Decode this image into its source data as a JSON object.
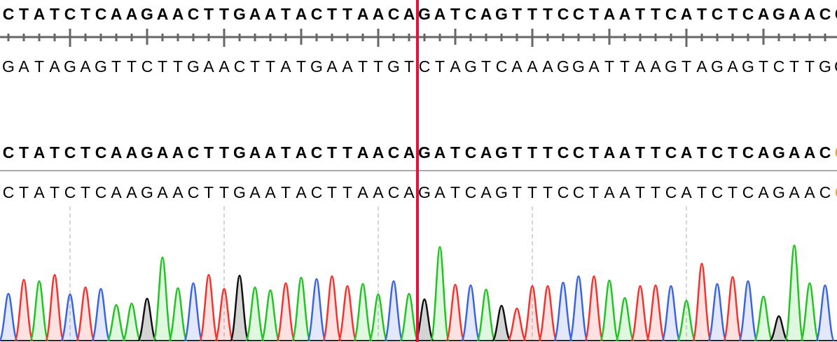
{
  "colors": {
    "A": "#22c322",
    "C": "#3a64e0",
    "G": "#111111",
    "T": "#f2332e",
    "cursor": "#e8103a",
    "last_base": "#f0a020"
  },
  "reference_sequence": "CTATCTCAAGAACTTGAATACTTAACAGATCAGTTTCCTAATTCATCTCAGAACC",
  "reference_complement": "GATAGAGTTCTTGAACTTATGAATTGTCTAGTCAAAGGATTAAGTAGAGTCTTGG",
  "consensus_sequence": "CTATCTCAAGAACTTGAATACTTAACAGATCAGTTTCCTAATTCATCTCAGAACC",
  "read_sequence": "CTATCTCAAGAACTTGAATACTTAACAGATCAGTTTCCTAATTCATCTCAGAACC",
  "cursor_position": 27,
  "chart_data": {
    "type": "chromatogram",
    "bases": "CTATCTCAAGAACTTGAATACTTAACAGATCAGTTTCCTAATTCATCTCAGAAC",
    "peak_heights": [
      67,
      87,
      85,
      94,
      66,
      76,
      74,
      51,
      53,
      60,
      119,
      75,
      82,
      94,
      74,
      93,
      76,
      72,
      82,
      90,
      88,
      92,
      78,
      81,
      66,
      85,
      67,
      59,
      134,
      80,
      79,
      73,
      50,
      46,
      78,
      78,
      83,
      92,
      92,
      86,
      61,
      78,
      79,
      78,
      57,
      110,
      81,
      91,
      85,
      63,
      35,
      136,
      82,
      79
    ]
  }
}
